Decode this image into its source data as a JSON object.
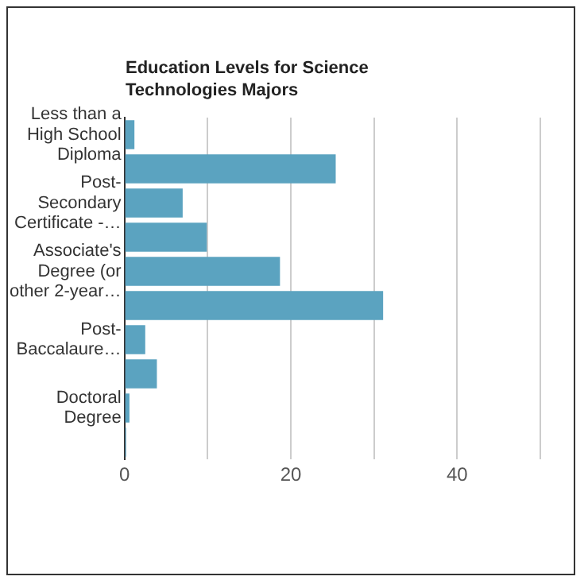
{
  "chart_data": {
    "type": "bar",
    "orientation": "horizontal",
    "title": "Education Levels for Science Technologies Majors",
    "categories": [
      "Less than a High School Diploma",
      null,
      "Post-Secondary Certificate -…",
      null,
      "Associate's Degree (or other 2-year…",
      null,
      "Post-Baccalaure…",
      null,
      "Doctoral Degree",
      null
    ],
    "values": [
      1.2,
      25.4,
      7.0,
      9.9,
      18.7,
      31.1,
      2.5,
      3.9,
      0.6,
      0.2
    ],
    "color": "#5ba3c0",
    "xlim": [
      0,
      50
    ],
    "xticks": [
      0,
      {
        "value": 10,
        "label": null
      },
      20,
      {
        "value": 30,
        "label": null
      },
      40,
      {
        "value": 50,
        "label": null
      }
    ],
    "grid": "x",
    "legend": false
  }
}
